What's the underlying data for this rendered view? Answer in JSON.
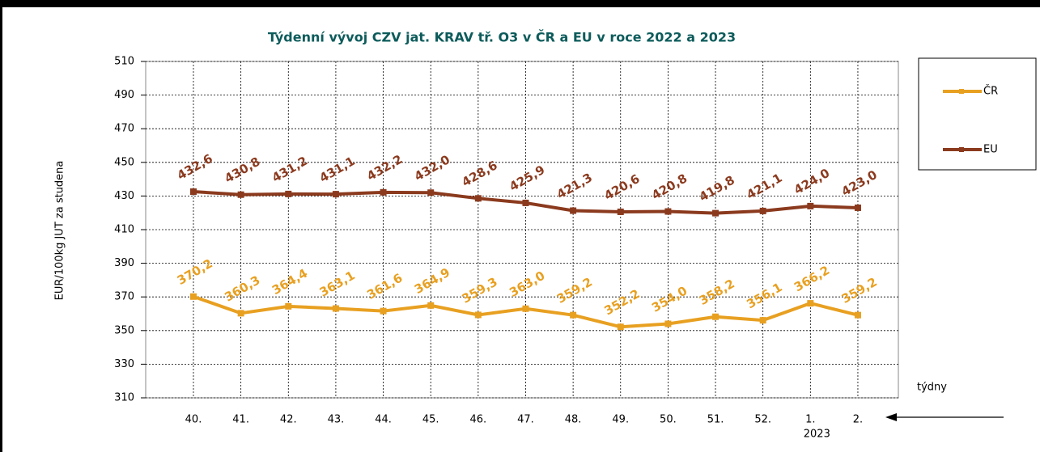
{
  "chart_data": {
    "type": "line",
    "title": "Týdenní vývoj CZV jat. KRAV tř. O3  v ČR a EU v roce 2022 a 2023",
    "y_label": "EUR/100kg  JUT za studena",
    "x_label": "týdny",
    "year_label": "2023",
    "categories": [
      "40.",
      "41.",
      "42.",
      "43.",
      "44.",
      "45.",
      "46.",
      "47.",
      "48.",
      "49.",
      "50.",
      "51.",
      "52.",
      "1.",
      "2."
    ],
    "series": [
      {
        "name": "ČR",
        "color": "#e8a021",
        "values": [
          370.2,
          360.3,
          364.4,
          363.1,
          361.6,
          364.9,
          359.3,
          363.0,
          359.2,
          352.2,
          354.0,
          358.2,
          356.1,
          366.2,
          359.2
        ],
        "value_labels": [
          "370,2",
          "360,3",
          "364,4",
          "363,1",
          "361,6",
          "364,9",
          "359,3",
          "363,0",
          "359,2",
          "352,2",
          "354,0",
          "358,2",
          "356,1",
          "366,2",
          "359,2"
        ]
      },
      {
        "name": "EU",
        "color": "#8b3a1e",
        "values": [
          432.6,
          430.8,
          431.2,
          431.1,
          432.2,
          432.0,
          428.6,
          425.9,
          421.3,
          420.6,
          420.8,
          419.8,
          421.1,
          424.0,
          423.0
        ],
        "value_labels": [
          "432,6",
          "430,8",
          "431,2",
          "431,1",
          "432,2",
          "432,0",
          "428,6",
          "425,9",
          "421,3",
          "420,6",
          "420,8",
          "419,8",
          "421,1",
          "424,0",
          "423,0"
        ]
      }
    ],
    "ylim": [
      310,
      510
    ],
    "yticks": [
      310,
      330,
      350,
      370,
      390,
      410,
      430,
      450,
      470,
      490,
      510
    ],
    "grid": true,
    "legend": "right"
  }
}
